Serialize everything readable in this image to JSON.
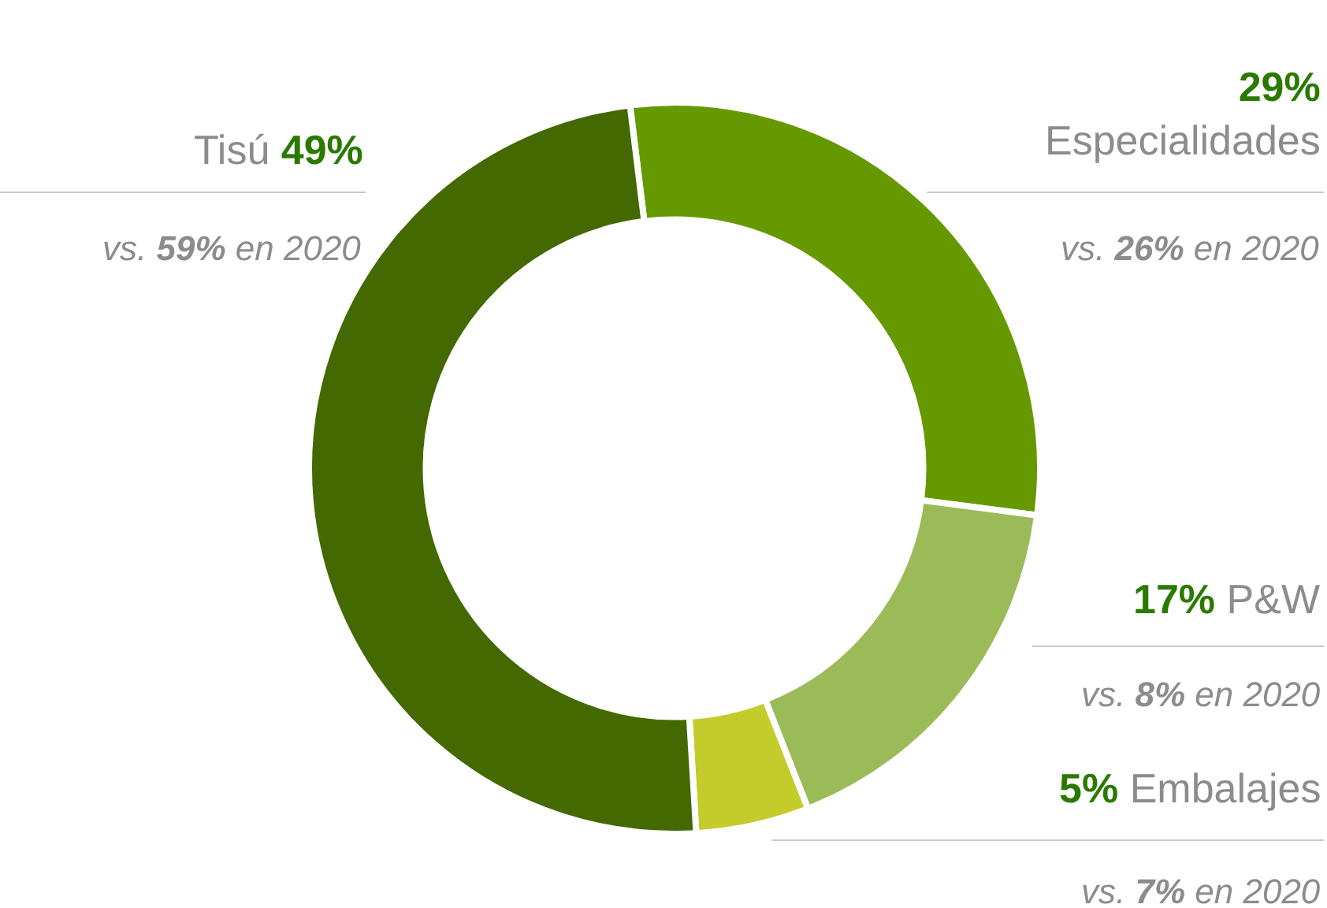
{
  "chart_data": {
    "type": "donut",
    "categories": [
      "Especialidades",
      "P&W",
      "Embalajes",
      "Tisú"
    ],
    "values": [
      29,
      17,
      5,
      49
    ],
    "value_labels": [
      "29%",
      "17%",
      "5%",
      "49%"
    ],
    "colors": [
      "#669900",
      "#9bbb59",
      "#c4cc2c",
      "#436900"
    ],
    "annotations": [
      "vs. 26% en 2020",
      "vs. 8% en 2020",
      "vs. 7% en 2020",
      "vs. 59% en 2020"
    ],
    "legend": false
  }
}
